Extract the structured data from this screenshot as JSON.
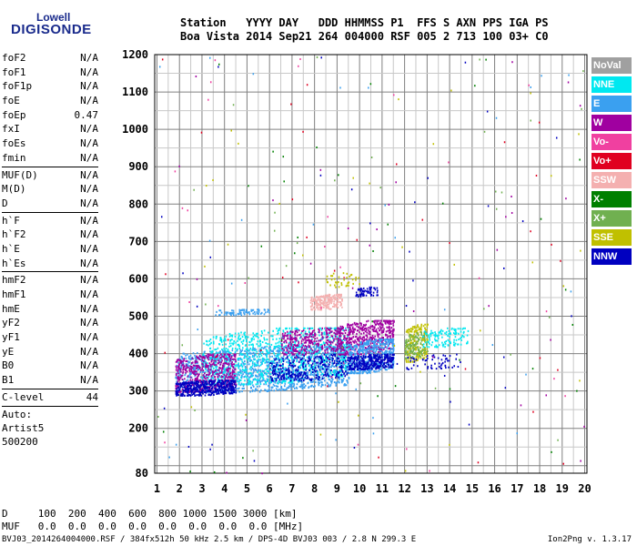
{
  "logo": {
    "line1": "Lowell",
    "line2": "DIGISONDE"
  },
  "header": {
    "row1": "Station   YYYY DAY   DDD HHMMSS P1  FFS S AXN PPS IGA PS",
    "row2": "Boa Vista 2014 Sep21 264 004000 RSF 005 2 713 100 03+ C0"
  },
  "params_group1": [
    {
      "name": "foF2",
      "value": "N/A"
    },
    {
      "name": "foF1",
      "value": "N/A"
    },
    {
      "name": "foF1p",
      "value": "N/A"
    },
    {
      "name": "foE",
      "value": "N/A"
    },
    {
      "name": "foEp",
      "value": "0.47"
    },
    {
      "name": "fxI",
      "value": "N/A"
    },
    {
      "name": "foEs",
      "value": "N/A"
    },
    {
      "name": "fmin",
      "value": "N/A"
    }
  ],
  "params_group2": [
    {
      "name": "MUF(D)",
      "value": "N/A"
    },
    {
      "name": "M(D)",
      "value": "N/A"
    },
    {
      "name": "D",
      "value": "N/A"
    }
  ],
  "params_group3": [
    {
      "name": "h`F",
      "value": "N/A"
    },
    {
      "name": "h`F2",
      "value": "N/A"
    },
    {
      "name": "h`E",
      "value": "N/A"
    },
    {
      "name": "h`Es",
      "value": "N/A"
    }
  ],
  "params_group4": [
    {
      "name": "hmF2",
      "value": "N/A"
    },
    {
      "name": "hmF1",
      "value": "N/A"
    },
    {
      "name": "hmE",
      "value": "N/A"
    },
    {
      "name": "yF2",
      "value": "N/A"
    },
    {
      "name": "yF1",
      "value": "N/A"
    },
    {
      "name": "yE",
      "value": "N/A"
    },
    {
      "name": "B0",
      "value": "N/A"
    },
    {
      "name": "B1",
      "value": "N/A"
    }
  ],
  "clevel": {
    "name": "C-level",
    "value": "44"
  },
  "auto": [
    "Auto:",
    "Artist5",
    "500200"
  ],
  "legend": [
    {
      "label": "NoVal",
      "color": "#a0a0a0"
    },
    {
      "label": "NNE",
      "color": "#00e8f0"
    },
    {
      "label": "E",
      "color": "#3aa0f0"
    },
    {
      "label": "W",
      "color": "#a000a0"
    },
    {
      "label": "Vo-",
      "color": "#f040a0"
    },
    {
      "label": "Vo+",
      "color": "#e00020"
    },
    {
      "label": "SSW",
      "color": "#f4b0b0"
    },
    {
      "label": "X-",
      "color": "#008000"
    },
    {
      "label": "X+",
      "color": "#70b050"
    },
    {
      "label": "SSE",
      "color": "#c0c000"
    },
    {
      "label": "NNW",
      "color": "#0000c0"
    }
  ],
  "footer": {
    "d_row": "D     100  200  400  600  800 1000 1500 3000 [km]",
    "muf_row": "MUF   0.0  0.0  0.0  0.0  0.0  0.0  0.0  0.0 [MHz]",
    "file_info": "BVJ03_2014264004000.RSF / 384fx512h 50 kHz 2.5 km / DPS-4D BVJ03 003 / 2.8 N 299.3 E",
    "version": "Ion2Png v. 1.3.17"
  },
  "chart_data": {
    "type": "scatter",
    "x_ticks": [
      1,
      2,
      3,
      4,
      5,
      6,
      7,
      8,
      9,
      10,
      11,
      12,
      13,
      14,
      15,
      16,
      17,
      18,
      19,
      20
    ],
    "y_ticks": [
      80,
      200,
      300,
      400,
      500,
      600,
      700,
      800,
      900,
      1000,
      1100,
      1200
    ],
    "xlim": [
      0.9,
      20.1
    ],
    "ylim": [
      80,
      1200
    ],
    "grid": true,
    "legend_placement": "right",
    "clusters": [
      {
        "series": "E",
        "x": [
          1.8,
          9.5
        ],
        "y": [
          300,
          420
        ],
        "n": 1400
      },
      {
        "series": "NNE",
        "x": [
          3.0,
          9.5
        ],
        "y": [
          320,
          470
        ],
        "n": 900
      },
      {
        "series": "W",
        "x": [
          1.8,
          4.5
        ],
        "y": [
          300,
          400
        ],
        "n": 500
      },
      {
        "series": "NNW",
        "x": [
          1.8,
          4.5
        ],
        "y": [
          290,
          330
        ],
        "n": 400
      },
      {
        "series": "NNW",
        "x": [
          6.0,
          9.5
        ],
        "y": [
          330,
          400
        ],
        "n": 300
      },
      {
        "series": "W",
        "x": [
          9.0,
          11.5
        ],
        "y": [
          400,
          490
        ],
        "n": 500
      },
      {
        "series": "E",
        "x": [
          9.5,
          11.5
        ],
        "y": [
          350,
          440
        ],
        "n": 500
      },
      {
        "series": "NNW",
        "x": [
          9.5,
          11.5
        ],
        "y": [
          360,
          400
        ],
        "n": 300
      },
      {
        "series": "W",
        "x": [
          6.5,
          9.2
        ],
        "y": [
          400,
          470
        ],
        "n": 300
      },
      {
        "series": "SSW",
        "x": [
          7.8,
          9.2
        ],
        "y": [
          520,
          560
        ],
        "n": 200
      },
      {
        "series": "NNW",
        "x": [
          9.8,
          10.8
        ],
        "y": [
          555,
          580
        ],
        "n": 60
      },
      {
        "series": "SSE",
        "x": [
          12.0,
          13.0
        ],
        "y": [
          380,
          480
        ],
        "n": 200
      },
      {
        "series": "X+",
        "x": [
          12.0,
          13.0
        ],
        "y": [
          390,
          460
        ],
        "n": 120
      },
      {
        "series": "NNE",
        "x": [
          12.8,
          14.8
        ],
        "y": [
          420,
          470
        ],
        "n": 120
      },
      {
        "series": "NNW",
        "x": [
          12.0,
          14.5
        ],
        "y": [
          360,
          400
        ],
        "n": 60
      },
      {
        "series": "E",
        "x": [
          3.5,
          6.0
        ],
        "y": [
          505,
          520
        ],
        "n": 80
      },
      {
        "series": "SSE",
        "x": [
          8.5,
          10.0
        ],
        "y": [
          580,
          620
        ],
        "n": 40
      }
    ],
    "noise": {
      "count": 260,
      "x": [
        1.0,
        20.0
      ],
      "y": [
        80,
        1200
      ]
    }
  }
}
